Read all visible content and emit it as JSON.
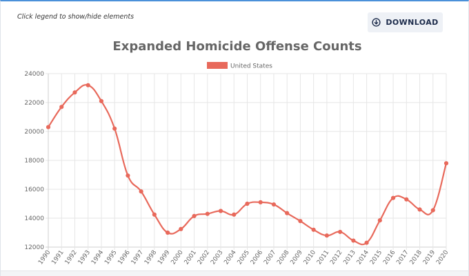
{
  "header": {
    "hint": "Click legend to show/hide elements",
    "download_label": "DOWNLOAD"
  },
  "icons": {
    "download": "download-circle-icon"
  },
  "colors": {
    "series": "#e8695b",
    "button_bg": "#eef1f6",
    "button_text": "#1b2a4a"
  },
  "chart_data": {
    "type": "line",
    "title": "Expanded Homicide Offense Counts",
    "xlabel": "",
    "ylabel": "",
    "ylim": [
      12000,
      24000
    ],
    "yticks": [
      12000,
      14000,
      16000,
      18000,
      20000,
      22000,
      24000
    ],
    "grid": true,
    "legend_placement": "top-center",
    "x": [
      "1990",
      "1991",
      "1992",
      "1993",
      "1994",
      "1995",
      "1996",
      "1997",
      "1998",
      "1999",
      "2000",
      "2001",
      "2002",
      "2003",
      "2004",
      "2005",
      "2006",
      "2007",
      "2008",
      "2009",
      "2010",
      "2011",
      "2012",
      "2013",
      "2014",
      "2015",
      "2016",
      "2017",
      "2018",
      "2019",
      "2020"
    ],
    "series": [
      {
        "name": "United States",
        "color": "#e8695b",
        "values": [
          20300,
          21700,
          22700,
          23200,
          22100,
          20200,
          16950,
          15850,
          14250,
          13000,
          13250,
          14150,
          14300,
          14500,
          14250,
          15000,
          15100,
          14950,
          14350,
          13800,
          13200,
          12800,
          13050,
          12450,
          12300,
          13850,
          15400,
          15300,
          14600,
          14550,
          17800
        ]
      }
    ]
  }
}
